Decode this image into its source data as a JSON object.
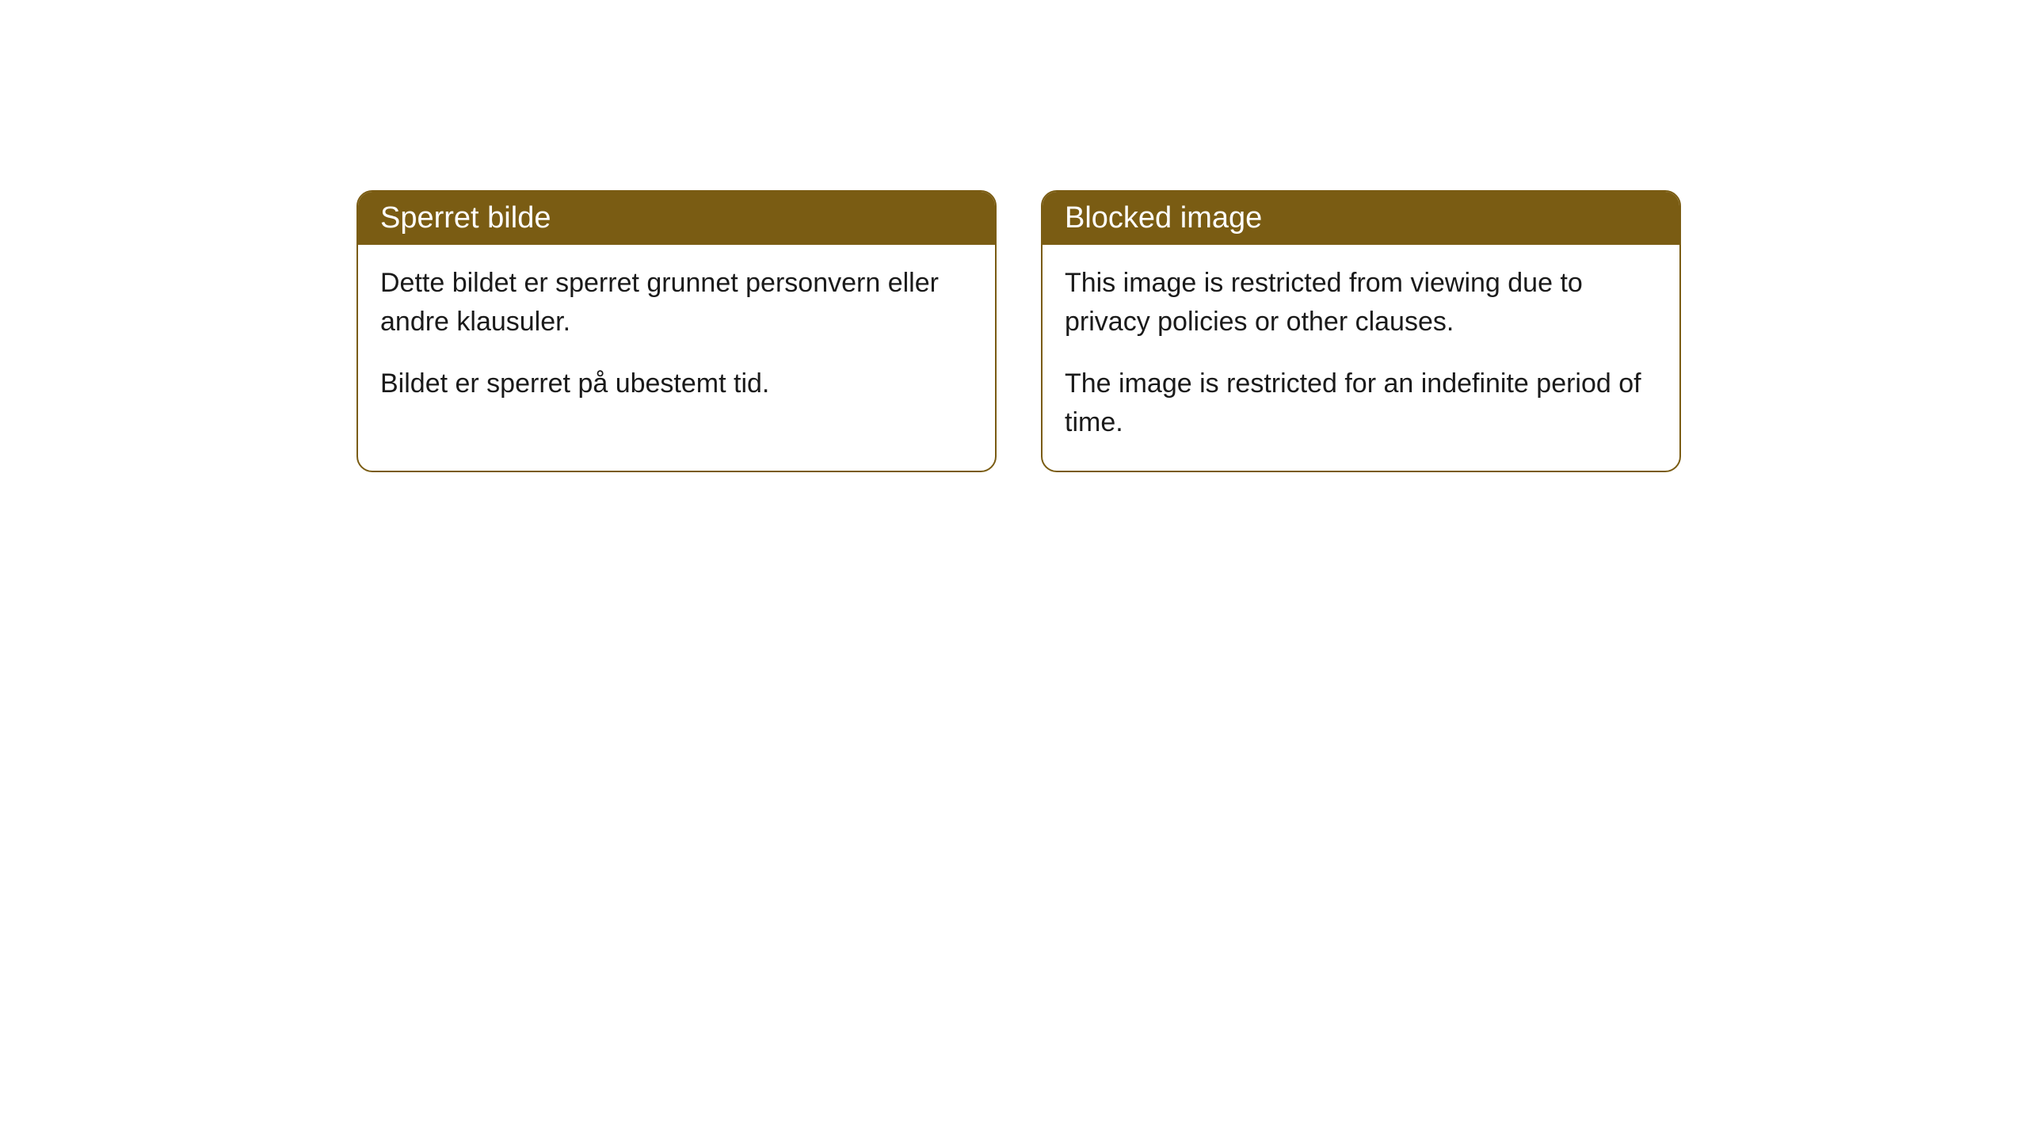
{
  "cards": [
    {
      "title": "Sperret bilde",
      "paragraph1": "Dette bildet er sperret grunnet personvern eller andre klausuler.",
      "paragraph2": "Bildet er sperret på ubestemt tid."
    },
    {
      "title": "Blocked image",
      "paragraph1": "This image is restricted from viewing due to privacy policies or other clauses.",
      "paragraph2": "The image is restricted for an indefinite period of time."
    }
  ],
  "styling": {
    "header_background": "#7a5c13",
    "header_text_color": "#ffffff",
    "card_border_color": "#7a5c13",
    "card_background": "#ffffff",
    "body_text_color": "#1a1a1a",
    "page_background": "#ffffff",
    "border_radius": 20,
    "header_fontsize": 38,
    "body_fontsize": 34
  }
}
